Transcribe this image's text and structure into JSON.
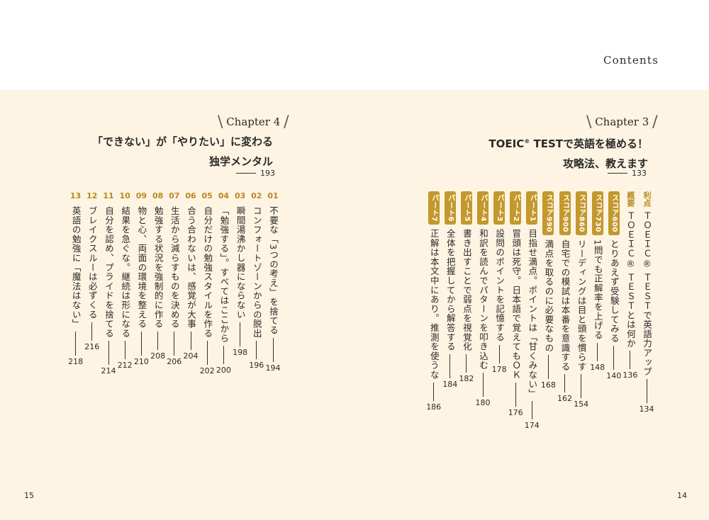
{
  "header": {
    "contents_label": "Contents"
  },
  "chapter4": {
    "label": "Chapter 4",
    "title_line1": "「できない」が「やりたい」に変わる",
    "title_line2": "独学メンタル",
    "page": "193",
    "items": [
      {
        "num": "01",
        "text": "不要な「3つの考え」を捨てる",
        "page": "194"
      },
      {
        "num": "02",
        "text": "コンフォートゾーンからの脱出",
        "page": "196"
      },
      {
        "num": "03",
        "text": "瞬間湯沸かし器にならない",
        "page": "198"
      },
      {
        "num": "04",
        "text": "「勉強する」。すべてはここから",
        "page": "200"
      },
      {
        "num": "05",
        "text": "自分だけの勉強スタイルを作る",
        "page": "202"
      },
      {
        "num": "06",
        "text": "合う合わないは、感覚が大事",
        "page": "204"
      },
      {
        "num": "07",
        "text": "生活から減らすものを決める",
        "page": "206"
      },
      {
        "num": "08",
        "text": "勉強する状況を強制的に作る",
        "page": "208"
      },
      {
        "num": "09",
        "text": "物と心、両面の環境を整える",
        "page": "210"
      },
      {
        "num": "10",
        "text": "結果を急ぐな。継続は形になる",
        "page": "212"
      },
      {
        "num": "11",
        "text": "自分を認め、プライドを捨てる",
        "page": "214"
      },
      {
        "num": "12",
        "text": "ブレイクスルーは必ずくる",
        "page": "216"
      },
      {
        "num": "13",
        "text": "英語の勉強に「魔法はない」",
        "page": "218"
      }
    ]
  },
  "chapter3": {
    "label": "Chapter 3",
    "title_line1_a": "TOEIC",
    "title_line1_reg": "®",
    "title_line1_b": " TESTで英語を極める！",
    "title_line2": "攻略法、教えます",
    "page": "133",
    "items": [
      {
        "tag": "利点",
        "text": "ＴＯＥＩＣ® ＴＥＳＴで英語力アップ",
        "page": "134"
      },
      {
        "tag": "概要",
        "text": "ＴＯＥＩＣ® ＴＥＳＴとは何か",
        "page": "136"
      },
      {
        "badge": "スコア600",
        "text": "とりあえず受験してみる",
        "page": "140"
      },
      {
        "badge": "スコア730",
        "text": "1問でも正解率を上げる",
        "page": "148"
      },
      {
        "badge": "スコア860",
        "text": "リーディングは目と頭を慣らす",
        "page": "154"
      },
      {
        "badge": "スコア900",
        "text": "自宅での模試は本番を意識する",
        "page": "162"
      },
      {
        "badge": "スコア990",
        "text": "満点を取るのに必要なもの",
        "page": "168"
      },
      {
        "badge": "パート1",
        "text": "目指せ満点。ポイントは「甘くみない」",
        "page": "174"
      },
      {
        "badge": "パート2",
        "text": "冒頭は死守。日本語で覚えてもＯＫ",
        "page": "176"
      },
      {
        "badge": "パート3",
        "text": "設問のポイントを記憶する",
        "page": "178"
      },
      {
        "badge": "パート4",
        "text": "和訳を読んでパターンを叩き込む",
        "page": "180"
      },
      {
        "badge": "パート5",
        "text": "書き出すことで弱点を視覚化",
        "page": "182"
      },
      {
        "badge": "パート6",
        "text": "全体を把握してから解答する",
        "page": "184"
      },
      {
        "badge": "パート7",
        "text": "正解は本文中にあり。推測を使うな",
        "page": "186"
      }
    ]
  },
  "folio": {
    "left": "15",
    "right": "14"
  }
}
